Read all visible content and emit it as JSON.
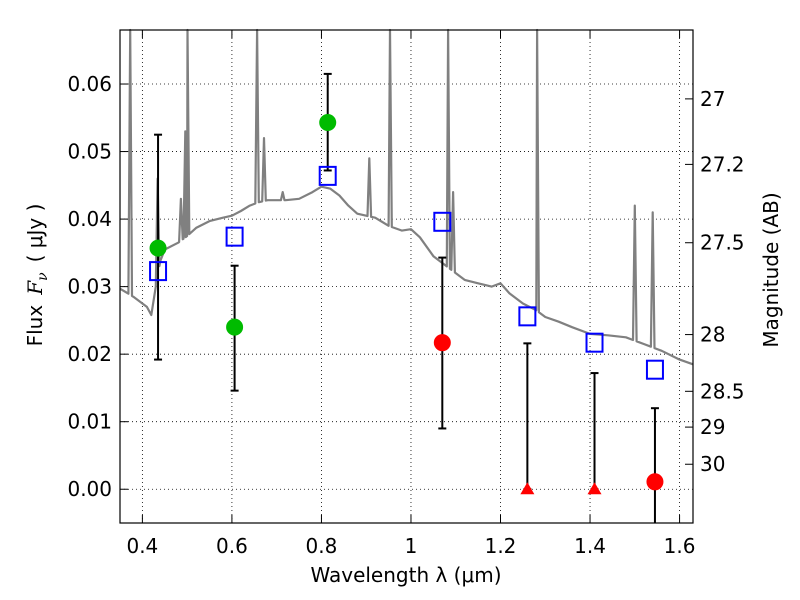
{
  "chart_data": {
    "type": "scatter",
    "xlabel": "Wavelength  λ (μm)",
    "ylabel": "Flux  F_ν  ( μJy )",
    "ylabel_parts": {
      "prefix": "Flux",
      "symbol": "F",
      "subscript": "ν",
      "unit": "( μJy )"
    },
    "ylabel_right": "Magnitude (AB)",
    "xlim": [
      0.35,
      1.63
    ],
    "ylim": [
      -0.005,
      0.068
    ],
    "grid": true,
    "x_ticks": [
      0.4,
      0.6,
      0.8,
      1.0,
      1.2,
      1.4,
      1.6
    ],
    "x_tick_labels": [
      "0.4",
      "0.6",
      "0.8",
      "1",
      "1.2",
      "1.4",
      "1.6"
    ],
    "y_ticks": [
      0.0,
      0.01,
      0.02,
      0.03,
      0.04,
      0.05,
      0.06
    ],
    "y_tick_labels": [
      "0.00",
      "0.01",
      "0.02",
      "0.03",
      "0.04",
      "0.05",
      "0.06"
    ],
    "right_axis_ticks": [
      {
        "flux": 0.0578,
        "label": "27"
      },
      {
        "flux": 0.0481,
        "label": "27.2"
      },
      {
        "flux": 0.0365,
        "label": "27.5"
      },
      {
        "flux": 0.0229,
        "label": "28"
      },
      {
        "flux": 0.0145,
        "label": "28.5"
      },
      {
        "flux": 0.0092,
        "label": "29"
      },
      {
        "flux": 0.0037,
        "label": "30"
      }
    ],
    "colors": {
      "spectrum": "#808080",
      "model": "#0000ff",
      "detection": "#00bb00",
      "measurement": "#ff0000",
      "upper_limit": "#ff0000",
      "errorbar": "#000000"
    },
    "series": [
      {
        "name": "model spectrum",
        "kind": "line",
        "x": [
          0.35,
          0.38,
          0.4,
          0.41,
          0.42,
          0.43,
          0.44,
          0.45,
          0.48,
          0.5,
          0.52,
          0.55,
          0.58,
          0.6,
          0.62,
          0.64,
          0.66,
          0.68,
          0.7,
          0.72,
          0.75,
          0.78,
          0.8,
          0.82,
          0.84,
          0.86,
          0.88,
          0.9,
          0.92,
          0.95,
          0.98,
          1.0,
          1.02,
          1.05,
          1.08,
          1.1,
          1.12,
          1.15,
          1.18,
          1.2,
          1.22,
          1.25,
          1.28,
          1.3,
          1.33,
          1.36,
          1.4,
          1.44,
          1.48,
          1.52,
          1.56,
          1.6,
          1.63
        ],
        "y": [
          0.0297,
          0.0285,
          0.0275,
          0.027,
          0.0258,
          0.03,
          0.0338,
          0.0355,
          0.0365,
          0.0375,
          0.0387,
          0.0397,
          0.0402,
          0.0405,
          0.0412,
          0.042,
          0.0425,
          0.0428,
          0.0428,
          0.0428,
          0.043,
          0.044,
          0.0448,
          0.0445,
          0.0435,
          0.042,
          0.0408,
          0.0405,
          0.0402,
          0.039,
          0.0383,
          0.0385,
          0.0373,
          0.0345,
          0.033,
          0.032,
          0.031,
          0.0305,
          0.03,
          0.0305,
          0.029,
          0.0275,
          0.0265,
          0.0255,
          0.0248,
          0.024,
          0.023,
          0.0228,
          0.0225,
          0.0215,
          0.0205,
          0.0192,
          0.0185
        ]
      },
      {
        "name": "emission lines",
        "kind": "spikes",
        "x": [
          0.3727,
          0.434,
          0.4861,
          0.4959,
          0.5007,
          0.6563,
          0.6716,
          0.7135,
          0.9069,
          0.9532,
          1.083,
          1.0941,
          1.2818,
          1.5,
          1.54
        ],
        "y": [
          0.068,
          0.046,
          0.043,
          0.053,
          0.068,
          0.068,
          0.052,
          0.044,
          0.049,
          0.068,
          0.068,
          0.044,
          0.068,
          0.042,
          0.041
        ]
      },
      {
        "name": "model photometry",
        "kind": "open-square",
        "x": [
          0.435,
          0.606,
          0.814,
          1.07,
          1.26,
          1.41,
          1.545
        ],
        "y": [
          0.0323,
          0.0374,
          0.0464,
          0.0396,
          0.0256,
          0.0217,
          0.0177
        ]
      },
      {
        "name": "detections",
        "kind": "filled-circle",
        "color": "detection",
        "x": [
          0.435,
          0.606,
          0.814
        ],
        "y": [
          0.0357,
          0.024,
          0.0543
        ],
        "yerr_low": [
          0.0165,
          0.0094,
          0.0071
        ],
        "yerr_high": [
          0.0168,
          0.0091,
          0.0072
        ]
      },
      {
        "name": "low-significance measurements",
        "kind": "filled-circle",
        "color": "measurement",
        "x": [
          1.07,
          1.545
        ],
        "y": [
          0.0217,
          0.0011
        ],
        "yerr_low": [
          0.0127,
          0.0061
        ],
        "yerr_high": [
          0.0126,
          0.0109
        ]
      },
      {
        "name": "non-detections",
        "kind": "triangle",
        "color": "upper_limit",
        "x": [
          1.26,
          1.41
        ],
        "y": [
          0.0,
          0.0
        ],
        "yerr_low": [
          0.0,
          0.0
        ],
        "yerr_high": [
          0.0216,
          0.0172
        ]
      }
    ]
  }
}
